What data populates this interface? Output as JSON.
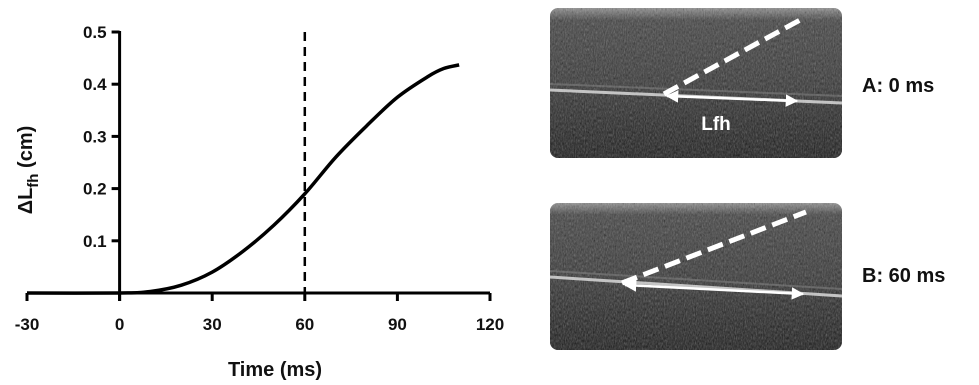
{
  "chart_data": {
    "type": "line",
    "xlabel": "Time (ms)",
    "ylabel_main": "ΔL",
    "ylabel_sub": "fh",
    "ylabel_unit": " (cm)",
    "xlim": [
      -30,
      120
    ],
    "ylim": [
      0,
      0.5
    ],
    "xticks": [
      -30,
      0,
      30,
      60,
      90,
      120
    ],
    "yticks": [
      0.1,
      0.2,
      0.3,
      0.4,
      0.5
    ],
    "grid": false,
    "marker_line_x": 60,
    "series": [
      {
        "x": [
          -30,
          0,
          10,
          20,
          30,
          40,
          50,
          60,
          70,
          80,
          90,
          100,
          105,
          110
        ],
        "y": [
          0,
          0,
          0.003,
          0.015,
          0.04,
          0.08,
          0.13,
          0.19,
          0.26,
          0.32,
          0.375,
          0.415,
          0.43,
          0.437
        ]
      }
    ]
  },
  "panels": {
    "a_label": "A: 0 ms",
    "b_label": "B: 60 ms",
    "fascicle_label": "Lfh"
  },
  "colors": {
    "curve": "#000000",
    "image_bg": "#3a3a3a",
    "overlay": "#ffffff"
  }
}
